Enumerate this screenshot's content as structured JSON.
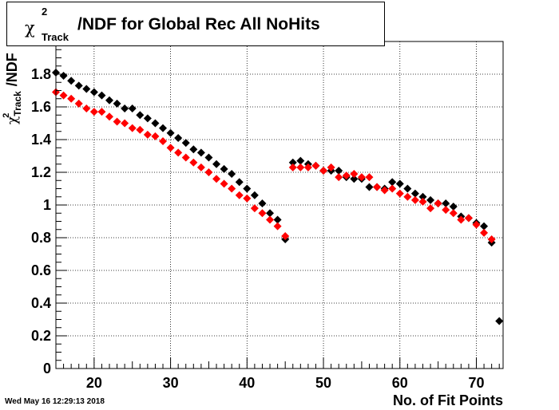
{
  "title": {
    "chi_symbol": "χ",
    "superscript": "2",
    "subscript": "Track",
    "text": "/NDF for Global Rec All NoHits"
  },
  "y_axis_label": {
    "chi_symbol": "χ",
    "superscript": "2",
    "subscript": "Track",
    "text": "/NDF"
  },
  "x_axis_label": "No. of Fit Points",
  "timestamp": "Wed May 16 12:29:13 2018",
  "colors": {
    "black_series": "#000000",
    "red_series": "#ff0000",
    "grid": "#000000"
  },
  "chart_data": {
    "type": "scatter",
    "title": "χ2 Track /NDF for Global Rec All NoHits",
    "xlabel": "No. of Fit Points",
    "ylabel": "χ2 Track /NDF",
    "xlim": [
      15,
      73.5
    ],
    "ylim": [
      0,
      2.0
    ],
    "x_ticks": [
      20,
      30,
      40,
      50,
      60,
      70
    ],
    "y_ticks": [
      0,
      0.2,
      0.4,
      0.6,
      0.8,
      1,
      1.2,
      1.4,
      1.6,
      1.8
    ],
    "grid": true,
    "marker": "diamond",
    "series": [
      {
        "color": "#000000",
        "points": [
          [
            15,
            1.81
          ],
          [
            16,
            1.79
          ],
          [
            17,
            1.76
          ],
          [
            18,
            1.73
          ],
          [
            19,
            1.71
          ],
          [
            20,
            1.69
          ],
          [
            21,
            1.67
          ],
          [
            22,
            1.64
          ],
          [
            23,
            1.62
          ],
          [
            24,
            1.59
          ],
          [
            25,
            1.59
          ],
          [
            26,
            1.55
          ],
          [
            27,
            1.53
          ],
          [
            28,
            1.5
          ],
          [
            29,
            1.47
          ],
          [
            30,
            1.44
          ],
          [
            31,
            1.41
          ],
          [
            32,
            1.38
          ],
          [
            33,
            1.34
          ],
          [
            34,
            1.32
          ],
          [
            35,
            1.29
          ],
          [
            36,
            1.25
          ],
          [
            37,
            1.22
          ],
          [
            38,
            1.19
          ],
          [
            39,
            1.14
          ],
          [
            40,
            1.1
          ],
          [
            41,
            1.06
          ],
          [
            42,
            1.01
          ],
          [
            43,
            0.95
          ],
          [
            44,
            0.91
          ],
          [
            45,
            0.79
          ],
          [
            46,
            1.26
          ],
          [
            47,
            1.27
          ],
          [
            48,
            1.25
          ],
          [
            49,
            1.24
          ],
          [
            50,
            1.21
          ],
          [
            51,
            1.21
          ],
          [
            52,
            1.21
          ],
          [
            53,
            1.17
          ],
          [
            54,
            1.16
          ],
          [
            55,
            1.16
          ],
          [
            56,
            1.11
          ],
          [
            57,
            1.11
          ],
          [
            58,
            1.1
          ],
          [
            59,
            1.14
          ],
          [
            60,
            1.13
          ],
          [
            61,
            1.1
          ],
          [
            62,
            1.07
          ],
          [
            63,
            1.05
          ],
          [
            64,
            1.03
          ],
          [
            65,
            1.01
          ],
          [
            66,
            1.01
          ],
          [
            67,
            0.99
          ],
          [
            68,
            0.93
          ],
          [
            69,
            0.92
          ],
          [
            70,
            0.89
          ],
          [
            71,
            0.87
          ],
          [
            72,
            0.77
          ],
          [
            73,
            0.29
          ]
        ]
      },
      {
        "color": "#ff0000",
        "points": [
          [
            15,
            1.69
          ],
          [
            16,
            1.67
          ],
          [
            17,
            1.65
          ],
          [
            18,
            1.62
          ],
          [
            19,
            1.59
          ],
          [
            20,
            1.57
          ],
          [
            21,
            1.57
          ],
          [
            22,
            1.54
          ],
          [
            23,
            1.51
          ],
          [
            24,
            1.5
          ],
          [
            25,
            1.47
          ],
          [
            26,
            1.46
          ],
          [
            27,
            1.43
          ],
          [
            28,
            1.42
          ],
          [
            29,
            1.39
          ],
          [
            30,
            1.35
          ],
          [
            31,
            1.32
          ],
          [
            32,
            1.29
          ],
          [
            33,
            1.26
          ],
          [
            34,
            1.23
          ],
          [
            35,
            1.2
          ],
          [
            36,
            1.16
          ],
          [
            37,
            1.13
          ],
          [
            38,
            1.1
          ],
          [
            39,
            1.06
          ],
          [
            40,
            1.04
          ],
          [
            41,
            0.98
          ],
          [
            42,
            0.95
          ],
          [
            43,
            0.91
          ],
          [
            44,
            0.87
          ],
          [
            45,
            0.81
          ],
          [
            46,
            1.23
          ],
          [
            47,
            1.23
          ],
          [
            48,
            1.23
          ],
          [
            49,
            1.24
          ],
          [
            50,
            1.21
          ],
          [
            51,
            1.23
          ],
          [
            52,
            1.17
          ],
          [
            53,
            1.18
          ],
          [
            54,
            1.19
          ],
          [
            55,
            1.17
          ],
          [
            56,
            1.17
          ],
          [
            57,
            1.11
          ],
          [
            58,
            1.09
          ],
          [
            59,
            1.1
          ],
          [
            60,
            1.07
          ],
          [
            61,
            1.05
          ],
          [
            62,
            1.03
          ],
          [
            63,
            1.02
          ],
          [
            64,
            0.98
          ],
          [
            65,
            1.01
          ],
          [
            66,
            0.97
          ],
          [
            67,
            0.95
          ],
          [
            68,
            0.91
          ],
          [
            69,
            0.92
          ],
          [
            70,
            0.88
          ],
          [
            71,
            0.83
          ],
          [
            72,
            0.79
          ]
        ]
      }
    ]
  }
}
